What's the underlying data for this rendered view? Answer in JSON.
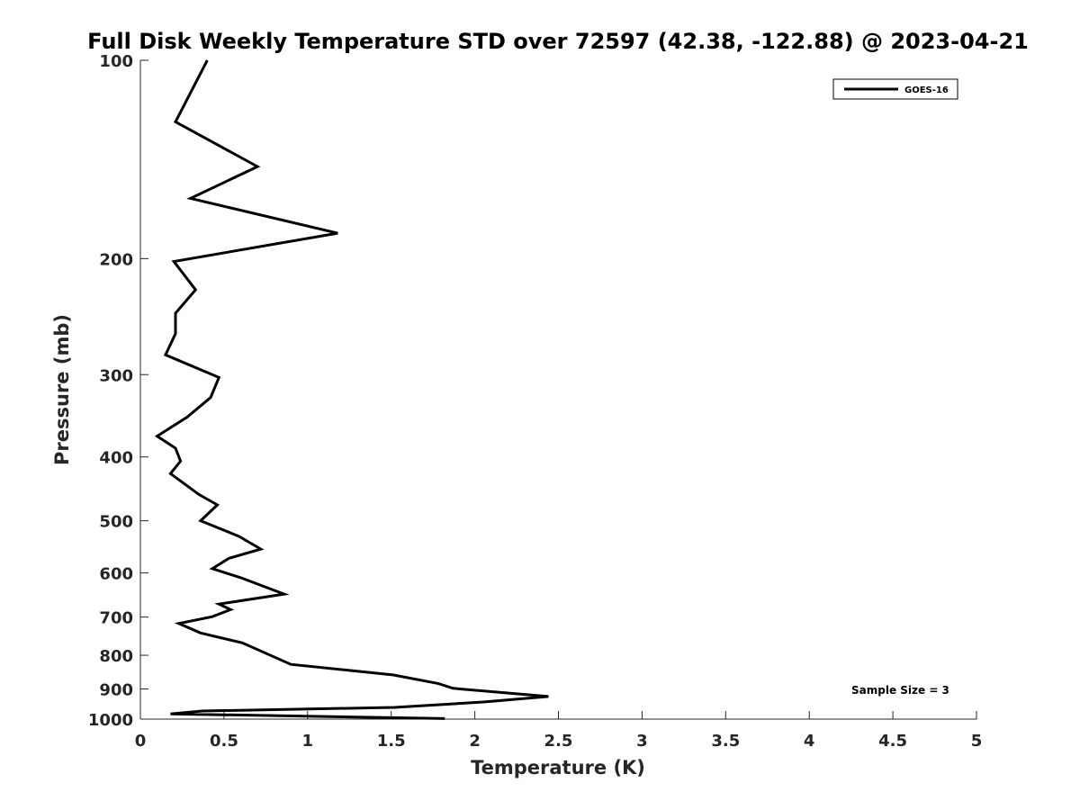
{
  "chart_data": {
    "type": "line",
    "title": "Full Disk Weekly Temperature STD over 72597 (42.38, -122.88) @ 2023-04-21",
    "xlabel": "Temperature (K)",
    "ylabel": "Pressure (mb)",
    "xlim": [
      0,
      5
    ],
    "ylim": [
      100,
      1000
    ],
    "y_scale": "log",
    "y_reversed": true,
    "x_ticks": [
      0,
      0.5,
      1,
      1.5,
      2,
      2.5,
      3,
      3.5,
      4,
      4.5,
      5
    ],
    "x_tick_labels": [
      "0",
      "0.5",
      "1",
      "1.5",
      "2",
      "2.5",
      "3",
      "3.5",
      "4",
      "4.5",
      "5"
    ],
    "y_ticks": [
      100,
      200,
      300,
      400,
      500,
      600,
      700,
      800,
      900,
      1000
    ],
    "y_tick_labels": [
      "100",
      "200",
      "300",
      "400",
      "500",
      "600",
      "700",
      "800",
      "900",
      "1000"
    ],
    "grid": false,
    "legend_position": "top-right",
    "annotation": "Sample Size = 3",
    "series": [
      {
        "name": "GOES-16",
        "color": "#000000",
        "points": [
          [
            0.4,
            100
          ],
          [
            0.21,
            124
          ],
          [
            0.7,
            145
          ],
          [
            0.3,
            162
          ],
          [
            1.18,
            183
          ],
          [
            0.2,
            202
          ],
          [
            0.33,
            223
          ],
          [
            0.21,
            242
          ],
          [
            0.21,
            260
          ],
          [
            0.15,
            280
          ],
          [
            0.47,
            303
          ],
          [
            0.42,
            325
          ],
          [
            0.28,
            348
          ],
          [
            0.1,
            372
          ],
          [
            0.21,
            388
          ],
          [
            0.24,
            406
          ],
          [
            0.18,
            424
          ],
          [
            0.35,
            456
          ],
          [
            0.46,
            473
          ],
          [
            0.36,
            500
          ],
          [
            0.59,
            528
          ],
          [
            0.72,
            552
          ],
          [
            0.53,
            570
          ],
          [
            0.43,
            591
          ],
          [
            0.6,
            610
          ],
          [
            0.86,
            646
          ],
          [
            0.47,
            669
          ],
          [
            0.54,
            682
          ],
          [
            0.43,
            699
          ],
          [
            0.23,
            716
          ],
          [
            0.36,
            740
          ],
          [
            0.61,
            766
          ],
          [
            0.9,
            826
          ],
          [
            1.51,
            857
          ],
          [
            1.78,
            883
          ],
          [
            1.87,
            898
          ],
          [
            2.44,
            924
          ],
          [
            2.05,
            942
          ],
          [
            1.52,
            960
          ],
          [
            0.37,
            972
          ],
          [
            0.18,
            982
          ],
          [
            1.82,
            998
          ]
        ]
      }
    ]
  }
}
